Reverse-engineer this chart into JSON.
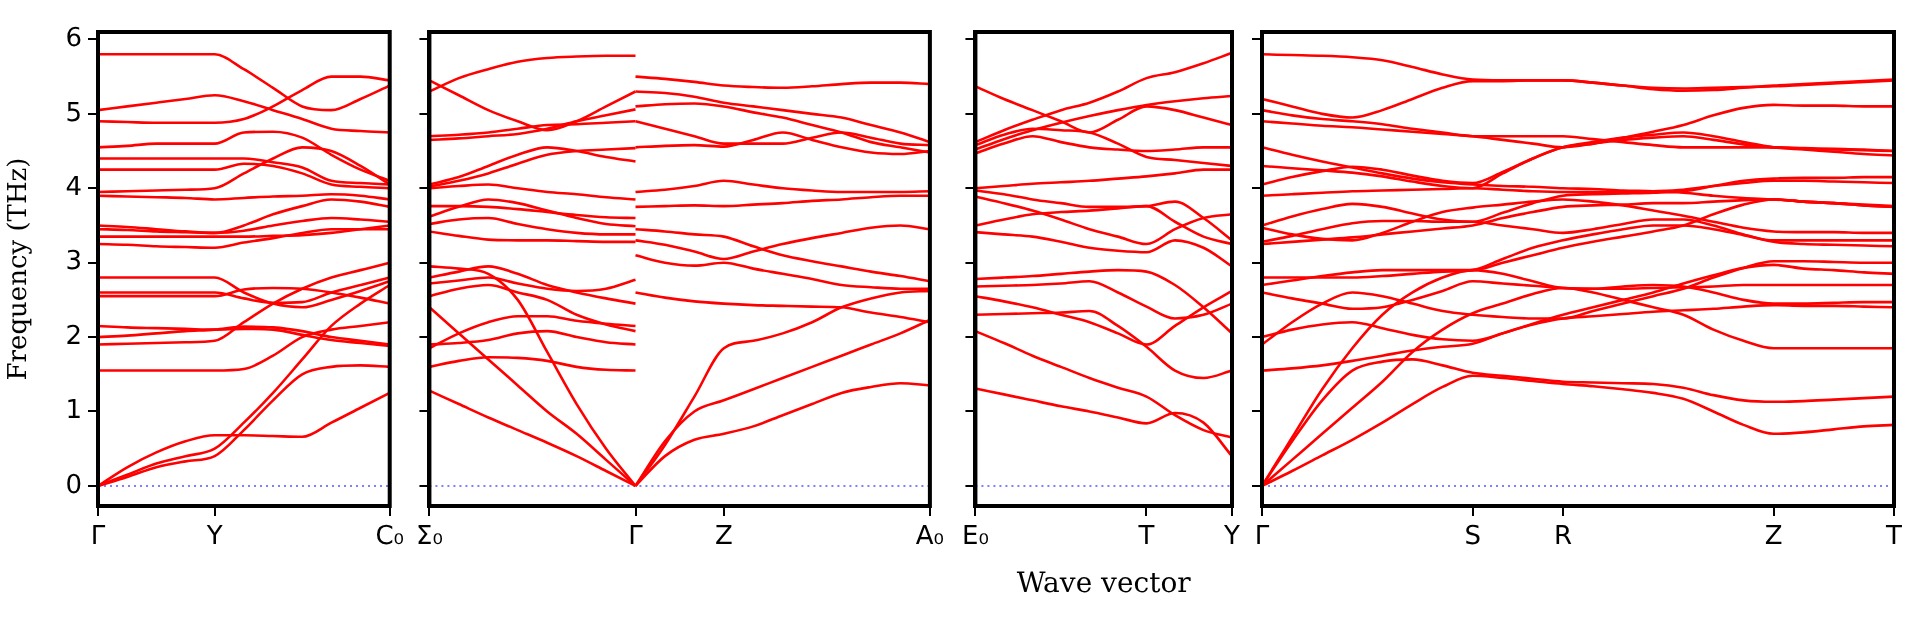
{
  "chart_data": [
    {
      "type": "line",
      "ylabel": "Frequency (THz)",
      "marker": "none",
      "grid": false,
      "categories": [
        "Γ",
        null,
        null,
        null,
        "Y",
        null,
        null,
        null,
        null,
        null,
        "C₀"
      ],
      "ylim": [
        -0.27,
        6.1
      ],
      "yticks": [
        0,
        1,
        2,
        3,
        4,
        5,
        6
      ],
      "ref_lines": [
        {
          "axis": "y",
          "value": 0,
          "color": "#8080ff",
          "line_style": "dotted"
        }
      ],
      "series": [
        {
          "color": "#ff0000",
          "values": [
            0,
            0.12,
            0.25,
            0.33,
            0.4,
            0.75,
            1.15,
            1.5,
            1.6,
            1.62,
            1.6
          ]
        },
        {
          "color": "#ff0000",
          "values": [
            0,
            0.15,
            0.3,
            0.4,
            0.5,
            0.85,
            1.25,
            1.7,
            2.15,
            2.45,
            2.7
          ]
        },
        {
          "color": "#ff0000",
          "values": [
            0,
            0.25,
            0.45,
            0.6,
            0.68,
            0.68,
            0.67,
            0.66,
            0.85,
            1.05,
            1.25
          ]
        },
        {
          "color": "#ff0000",
          "values": [
            1.55,
            1.55,
            1.55,
            1.55,
            1.55,
            1.57,
            1.75,
            2.0,
            2.1,
            2.15,
            2.2
          ]
        },
        {
          "color": "#ff0000",
          "values": [
            1.9,
            1.91,
            1.92,
            1.93,
            1.95,
            2.2,
            2.45,
            2.65,
            2.8,
            2.9,
            3.0
          ]
        },
        {
          "color": "#ff0000",
          "values": [
            2.0,
            2.02,
            2.05,
            2.08,
            2.1,
            2.14,
            2.13,
            2.08,
            2.0,
            1.95,
            1.9
          ]
        },
        {
          "color": "#ff0000",
          "values": [
            2.15,
            2.13,
            2.12,
            2.11,
            2.1,
            2.11,
            2.1,
            2.03,
            1.96,
            1.92,
            1.88
          ]
        },
        {
          "color": "#ff0000",
          "values": [
            2.55,
            2.55,
            2.55,
            2.55,
            2.55,
            2.64,
            2.66,
            2.65,
            2.6,
            2.53,
            2.45
          ]
        },
        {
          "color": "#ff0000",
          "values": [
            2.6,
            2.6,
            2.6,
            2.6,
            2.6,
            2.52,
            2.46,
            2.47,
            2.6,
            2.7,
            2.8
          ]
        },
        {
          "color": "#ff0000",
          "values": [
            2.8,
            2.8,
            2.8,
            2.8,
            2.8,
            2.6,
            2.45,
            2.4,
            2.5,
            2.62,
            2.75
          ]
        },
        {
          "color": "#ff0000",
          "values": [
            3.25,
            3.24,
            3.22,
            3.21,
            3.2,
            3.27,
            3.33,
            3.4,
            3.45,
            3.45,
            3.45
          ]
        },
        {
          "color": "#ff0000",
          "values": [
            3.35,
            3.35,
            3.35,
            3.35,
            3.35,
            3.35,
            3.36,
            3.37,
            3.4,
            3.45,
            3.5
          ]
        },
        {
          "color": "#ff0000",
          "values": [
            3.45,
            3.44,
            3.42,
            3.41,
            3.4,
            3.43,
            3.5,
            3.56,
            3.6,
            3.58,
            3.55
          ]
        },
        {
          "color": "#ff0000",
          "values": [
            3.5,
            3.48,
            3.45,
            3.42,
            3.4,
            3.5,
            3.65,
            3.76,
            3.85,
            3.82,
            3.75
          ]
        },
        {
          "color": "#ff0000",
          "values": [
            3.9,
            3.89,
            3.88,
            3.87,
            3.85,
            3.87,
            3.89,
            3.9,
            3.92,
            3.9,
            3.85
          ]
        },
        {
          "color": "#ff0000",
          "values": [
            3.95,
            3.96,
            3.97,
            3.98,
            4.0,
            4.2,
            4.4,
            4.55,
            4.5,
            4.3,
            4.05
          ]
        },
        {
          "color": "#ff0000",
          "values": [
            4.25,
            4.25,
            4.25,
            4.25,
            4.25,
            4.33,
            4.3,
            4.2,
            4.05,
            4.02,
            4.0
          ]
        },
        {
          "color": "#ff0000",
          "values": [
            4.4,
            4.4,
            4.4,
            4.4,
            4.4,
            4.4,
            4.35,
            4.28,
            4.1,
            4.07,
            4.05
          ]
        },
        {
          "color": "#ff0000",
          "values": [
            4.55,
            4.57,
            4.6,
            4.6,
            4.6,
            4.75,
            4.76,
            4.68,
            4.45,
            4.25,
            4.1
          ]
        },
        {
          "color": "#ff0000",
          "values": [
            4.9,
            4.89,
            4.88,
            4.88,
            4.88,
            4.93,
            5.1,
            5.32,
            5.5,
            5.5,
            5.45
          ]
        },
        {
          "color": "#ff0000",
          "values": [
            5.05,
            5.1,
            5.15,
            5.2,
            5.25,
            5.17,
            5.05,
            4.93,
            4.8,
            4.77,
            4.75
          ]
        },
        {
          "color": "#ff0000",
          "values": [
            5.8,
            5.8,
            5.8,
            5.8,
            5.8,
            5.6,
            5.35,
            5.1,
            5.05,
            5.2,
            5.38
          ]
        }
      ]
    },
    {
      "type": "line",
      "marker": "none",
      "grid": false,
      "tick_labels": "x",
      "categories": [
        "Σ₀",
        null,
        null,
        null,
        null,
        null,
        null,
        "Γ",
        null,
        null,
        "Z",
        null,
        null,
        null,
        null,
        null,
        null,
        "A₀"
      ],
      "ylim": [
        -0.27,
        6.1
      ],
      "yticks": [
        0,
        1,
        2,
        3,
        4,
        5,
        6
      ],
      "ref_lines": [
        {
          "axis": "y",
          "value": 0,
          "color": "#8080ff",
          "line_style": "dotted"
        }
      ],
      "series": [
        {
          "color": "#ff0000",
          "values": [
            1.28,
            1.1,
            0.92,
            0.75,
            0.58,
            0.4,
            0.2,
            0,
            null,
            null,
            null,
            null,
            null,
            null,
            null,
            null,
            null,
            null
          ]
        },
        {
          "color": "#ff0000",
          "values": [
            2.4,
            2.05,
            1.7,
            1.35,
            1.0,
            0.7,
            0.35,
            0,
            null,
            null,
            null,
            null,
            null,
            null,
            null,
            null,
            null,
            null
          ]
        },
        {
          "color": "#ff0000",
          "values": [
            2.95,
            2.92,
            2.85,
            2.5,
            1.8,
            1.1,
            0.5,
            0,
            null,
            null,
            null,
            null,
            null,
            null,
            null,
            null,
            null,
            null
          ]
        },
        {
          "color": "#ff0000",
          "values": [
            1.6,
            1.68,
            1.73,
            1.72,
            1.68,
            1.6,
            1.56,
            1.55,
            null,
            null,
            null,
            null,
            null,
            null,
            null,
            null,
            null,
            null
          ]
        },
        {
          "color": "#ff0000",
          "values": [
            1.9,
            1.92,
            1.96,
            2.05,
            2.08,
            2.0,
            1.93,
            1.9,
            null,
            null,
            null,
            null,
            null,
            null,
            null,
            null,
            null,
            null
          ]
        },
        {
          "color": "#ff0000",
          "values": [
            1.85,
            2.05,
            2.2,
            2.28,
            2.28,
            2.22,
            2.18,
            2.15,
            null,
            null,
            null,
            null,
            null,
            null,
            null,
            null,
            null,
            null
          ]
        },
        {
          "color": "#ff0000",
          "values": [
            2.55,
            2.65,
            2.7,
            2.6,
            2.5,
            2.3,
            2.17,
            2.08,
            null,
            null,
            null,
            null,
            null,
            null,
            null,
            null,
            null,
            null
          ]
        },
        {
          "color": "#ff0000",
          "values": [
            2.8,
            2.88,
            2.95,
            2.85,
            2.7,
            2.6,
            2.52,
            2.45,
            null,
            null,
            null,
            null,
            null,
            null,
            null,
            null,
            null,
            null
          ]
        },
        {
          "color": "#ff0000",
          "values": [
            2.72,
            2.76,
            2.8,
            2.72,
            2.65,
            2.62,
            2.65,
            2.77,
            null,
            null,
            null,
            null,
            null,
            null,
            null,
            null,
            null,
            null
          ]
        },
        {
          "color": "#ff0000",
          "values": [
            3.42,
            3.36,
            3.31,
            3.3,
            3.3,
            3.29,
            3.28,
            3.28,
            null,
            null,
            null,
            null,
            null,
            null,
            null,
            null,
            null,
            null
          ]
        },
        {
          "color": "#ff0000",
          "values": [
            3.52,
            3.58,
            3.6,
            3.52,
            3.45,
            3.4,
            3.38,
            3.38,
            null,
            null,
            null,
            null,
            null,
            null,
            null,
            null,
            null,
            null
          ]
        },
        {
          "color": "#ff0000",
          "values": [
            3.62,
            3.75,
            3.85,
            3.8,
            3.7,
            3.6,
            3.52,
            3.49,
            null,
            null,
            null,
            null,
            null,
            null,
            null,
            null,
            null,
            null
          ]
        },
        {
          "color": "#ff0000",
          "values": [
            3.76,
            3.76,
            3.75,
            3.72,
            3.68,
            3.64,
            3.61,
            3.6,
            null,
            null,
            null,
            null,
            null,
            null,
            null,
            null,
            null,
            null
          ]
        },
        {
          "color": "#ff0000",
          "values": [
            4.0,
            4.03,
            4.05,
            4.0,
            3.95,
            3.92,
            3.88,
            3.85,
            null,
            null,
            null,
            null,
            null,
            null,
            null,
            null,
            null,
            null
          ]
        },
        {
          "color": "#ff0000",
          "values": [
            4.05,
            4.15,
            4.3,
            4.45,
            4.55,
            4.5,
            4.42,
            4.36,
            null,
            null,
            null,
            null,
            null,
            null,
            null,
            null,
            null,
            null
          ]
        },
        {
          "color": "#ff0000",
          "values": [
            4.02,
            4.1,
            4.2,
            4.33,
            4.45,
            4.5,
            4.52,
            4.54,
            null,
            null,
            null,
            null,
            null,
            null,
            null,
            null,
            null,
            null
          ]
        },
        {
          "color": "#ff0000",
          "values": [
            4.7,
            4.72,
            4.75,
            4.8,
            4.85,
            4.86,
            4.88,
            4.9,
            null,
            null,
            null,
            null,
            null,
            null,
            null,
            null,
            null,
            null
          ]
        },
        {
          "color": "#ff0000",
          "values": [
            4.65,
            4.67,
            4.7,
            4.73,
            4.8,
            4.9,
            4.98,
            5.06,
            null,
            null,
            null,
            null,
            null,
            null,
            null,
            null,
            null,
            null
          ]
        },
        {
          "color": "#ff0000",
          "values": [
            5.45,
            5.25,
            5.05,
            4.9,
            4.78,
            4.9,
            5.1,
            5.3,
            null,
            null,
            null,
            null,
            null,
            null,
            null,
            null,
            null,
            null
          ]
        },
        {
          "color": "#ff0000",
          "values": [
            5.3,
            5.48,
            5.6,
            5.7,
            5.75,
            5.77,
            5.78,
            5.78,
            null,
            null,
            null,
            null,
            null,
            null,
            null,
            null,
            null,
            null
          ]
        },
        {
          "color": "#ff0000",
          "values": [
            null,
            null,
            null,
            null,
            null,
            null,
            null,
            0,
            0.4,
            0.62,
            0.7,
            0.8,
            0.95,
            1.1,
            1.25,
            1.33,
            1.38,
            1.35
          ]
        },
        {
          "color": "#ff0000",
          "values": [
            null,
            null,
            null,
            null,
            null,
            null,
            null,
            0,
            0.6,
            1.0,
            1.15,
            1.3,
            1.45,
            1.6,
            1.75,
            1.9,
            2.05,
            2.23
          ]
        },
        {
          "color": "#ff0000",
          "values": [
            null,
            null,
            null,
            null,
            null,
            null,
            null,
            0,
            0.55,
            1.2,
            1.85,
            1.95,
            2.05,
            2.2,
            2.4,
            2.52,
            2.6,
            2.62
          ]
        },
        {
          "color": "#ff0000",
          "values": [
            null,
            null,
            null,
            null,
            null,
            null,
            null,
            2.6,
            2.53,
            2.48,
            2.45,
            2.43,
            2.42,
            2.41,
            2.4,
            2.33,
            2.27,
            2.2
          ]
        },
        {
          "color": "#ff0000",
          "values": [
            null,
            null,
            null,
            null,
            null,
            null,
            null,
            3.1,
            3.0,
            2.96,
            3.0,
            2.92,
            2.85,
            2.78,
            2.7,
            2.67,
            2.65,
            2.65
          ]
        },
        {
          "color": "#ff0000",
          "values": [
            null,
            null,
            null,
            null,
            null,
            null,
            null,
            3.3,
            3.24,
            3.15,
            3.05,
            3.15,
            3.25,
            3.33,
            3.4,
            3.47,
            3.5,
            3.45
          ]
        },
        {
          "color": "#ff0000",
          "values": [
            null,
            null,
            null,
            null,
            null,
            null,
            null,
            3.45,
            3.42,
            3.38,
            3.35,
            3.22,
            3.1,
            3.02,
            2.95,
            2.88,
            2.82,
            2.75
          ]
        },
        {
          "color": "#ff0000",
          "values": [
            null,
            null,
            null,
            null,
            null,
            null,
            null,
            3.75,
            3.76,
            3.77,
            3.76,
            3.78,
            3.8,
            3.83,
            3.85,
            3.88,
            3.9,
            3.9
          ]
        },
        {
          "color": "#ff0000",
          "values": [
            null,
            null,
            null,
            null,
            null,
            null,
            null,
            3.95,
            3.98,
            4.03,
            4.1,
            4.05,
            4.0,
            3.97,
            3.95,
            3.95,
            3.95,
            3.96
          ]
        },
        {
          "color": "#ff0000",
          "values": [
            null,
            null,
            null,
            null,
            null,
            null,
            null,
            4.55,
            4.57,
            4.58,
            4.56,
            4.65,
            4.75,
            4.65,
            4.55,
            4.48,
            4.46,
            4.5
          ]
        },
        {
          "color": "#ff0000",
          "values": [
            null,
            null,
            null,
            null,
            null,
            null,
            null,
            4.9,
            4.8,
            4.7,
            4.6,
            4.6,
            4.6,
            4.68,
            4.75,
            4.68,
            4.6,
            4.58
          ]
        },
        {
          "color": "#ff0000",
          "values": [
            null,
            null,
            null,
            null,
            null,
            null,
            null,
            5.1,
            5.13,
            5.14,
            5.1,
            5.02,
            4.95,
            4.85,
            4.75,
            4.62,
            4.55,
            4.48
          ]
        },
        {
          "color": "#ff0000",
          "values": [
            null,
            null,
            null,
            null,
            null,
            null,
            null,
            5.3,
            5.28,
            5.23,
            5.15,
            5.1,
            5.05,
            5.0,
            4.95,
            4.85,
            4.75,
            4.62
          ]
        },
        {
          "color": "#ff0000",
          "values": [
            null,
            null,
            null,
            null,
            null,
            null,
            null,
            5.5,
            5.47,
            5.43,
            5.38,
            5.36,
            5.35,
            5.37,
            5.4,
            5.42,
            5.42,
            5.4
          ]
        }
      ]
    },
    {
      "type": "line",
      "xlabel": "Wave vector",
      "marker": "none",
      "grid": false,
      "tick_labels": "x",
      "categories": [
        "E₀",
        null,
        null,
        null,
        null,
        null,
        "T",
        null,
        null,
        "Y"
      ],
      "ylim": [
        -0.27,
        6.1
      ],
      "yticks": [
        0,
        1,
        2,
        3,
        4,
        5,
        6
      ],
      "ref_lines": [
        {
          "axis": "y",
          "value": 0,
          "color": "#8080ff",
          "line_style": "dotted"
        }
      ],
      "series": [
        {
          "color": "#ff0000",
          "values": [
            1.31,
            1.23,
            1.15,
            1.07,
            1.0,
            0.92,
            0.84,
            0.98,
            0.85,
            0.4
          ]
        },
        {
          "color": "#ff0000",
          "values": [
            2.08,
            1.92,
            1.75,
            1.6,
            1.45,
            1.32,
            1.2,
            0.95,
            0.75,
            0.65
          ]
        },
        {
          "color": "#ff0000",
          "values": [
            2.3,
            2.31,
            2.32,
            2.33,
            2.35,
            2.15,
            1.87,
            1.55,
            1.45,
            1.55
          ]
        },
        {
          "color": "#ff0000",
          "values": [
            2.68,
            2.69,
            2.7,
            2.72,
            2.75,
            2.6,
            2.41,
            2.25,
            2.3,
            2.45
          ]
        },
        {
          "color": "#ff0000",
          "values": [
            2.55,
            2.48,
            2.4,
            2.3,
            2.2,
            2.05,
            1.9,
            2.15,
            2.4,
            2.62
          ]
        },
        {
          "color": "#ff0000",
          "values": [
            2.78,
            2.8,
            2.82,
            2.85,
            2.88,
            2.9,
            2.88,
            2.7,
            2.4,
            2.05
          ]
        },
        {
          "color": "#ff0000",
          "values": [
            3.41,
            3.38,
            3.35,
            3.28,
            3.2,
            3.16,
            3.14,
            3.3,
            3.2,
            2.95
          ]
        },
        {
          "color": "#ff0000",
          "values": [
            3.5,
            3.58,
            3.65,
            3.68,
            3.7,
            3.73,
            3.76,
            3.55,
            3.35,
            3.25
          ]
        },
        {
          "color": "#ff0000",
          "values": [
            3.89,
            3.8,
            3.7,
            3.58,
            3.45,
            3.35,
            3.25,
            3.45,
            3.6,
            3.65
          ]
        },
        {
          "color": "#ff0000",
          "values": [
            3.97,
            3.92,
            3.85,
            3.8,
            3.75,
            3.75,
            3.76,
            3.82,
            3.6,
            3.3
          ]
        },
        {
          "color": "#ff0000",
          "values": [
            4.0,
            4.03,
            4.06,
            4.08,
            4.1,
            4.13,
            4.16,
            4.2,
            4.25,
            4.25
          ]
        },
        {
          "color": "#ff0000",
          "values": [
            4.47,
            4.6,
            4.7,
            4.62,
            4.55,
            4.52,
            4.5,
            4.52,
            4.55,
            4.55
          ]
        },
        {
          "color": "#ff0000",
          "values": [
            4.58,
            4.72,
            4.8,
            4.78,
            4.75,
            4.6,
            4.42,
            4.38,
            4.34,
            4.3
          ]
        },
        {
          "color": "#ff0000",
          "values": [
            5.37,
            5.2,
            5.05,
            4.9,
            4.75,
            4.92,
            5.1,
            5.05,
            4.95,
            4.85
          ]
        },
        {
          "color": "#ff0000",
          "values": [
            4.62,
            4.78,
            4.92,
            5.05,
            5.15,
            5.3,
            5.48,
            5.56,
            5.68,
            5.82
          ]
        },
        {
          "color": "#ff0000",
          "values": [
            4.52,
            4.66,
            4.78,
            4.88,
            4.97,
            5.05,
            5.12,
            5.17,
            5.21,
            5.24
          ]
        }
      ]
    },
    {
      "type": "line",
      "marker": "none",
      "grid": false,
      "tick_labels": "x",
      "categories": [
        "Γ",
        null,
        null,
        null,
        null,
        null,
        null,
        "S",
        null,
        null,
        "R",
        null,
        null,
        null,
        null,
        null,
        null,
        "Z",
        null,
        null,
        null,
        "T"
      ],
      "ylim": [
        -0.27,
        6.1
      ],
      "yticks": [
        0,
        1,
        2,
        3,
        4,
        5,
        6
      ],
      "ref_lines": [
        {
          "axis": "y",
          "value": 0,
          "color": "#8080ff",
          "line_style": "dotted"
        }
      ],
      "series": [
        {
          "color": "#ff0000",
          "values": [
            0,
            0.2,
            0.41,
            0.62,
            0.85,
            1.1,
            1.33,
            1.48,
            1.45,
            1.41,
            1.37,
            1.34,
            1.3,
            1.25,
            1.17,
            1.0,
            0.82,
            0.7,
            0.72,
            0.76,
            0.8,
            0.82
          ]
        },
        {
          "color": "#ff0000",
          "values": [
            0,
            0.6,
            1.15,
            1.55,
            1.67,
            1.7,
            1.62,
            1.52,
            1.48,
            1.44,
            1.4,
            1.39,
            1.38,
            1.37,
            1.32,
            1.22,
            1.15,
            1.13,
            1.14,
            1.16,
            1.18,
            1.2
          ]
        },
        {
          "color": "#ff0000",
          "values": [
            0,
            0.35,
            0.7,
            1.05,
            1.4,
            1.8,
            2.1,
            2.32,
            2.45,
            2.58,
            2.66,
            2.6,
            2.5,
            2.4,
            2.3,
            2.1,
            1.95,
            1.85,
            1.85,
            1.85,
            1.85,
            1.85
          ]
        },
        {
          "color": "#ff0000",
          "values": [
            0,
            0.65,
            1.3,
            1.85,
            2.3,
            2.6,
            2.8,
            2.9,
            2.85,
            2.75,
            2.66,
            2.65,
            2.68,
            2.7,
            2.68,
            2.6,
            2.5,
            2.45,
            2.45,
            2.46,
            2.47,
            2.47
          ]
        },
        {
          "color": "#ff0000",
          "values": [
            1.55,
            1.58,
            1.62,
            1.68,
            1.75,
            1.82,
            1.87,
            1.91,
            2.05,
            2.17,
            2.25,
            2.28,
            2.31,
            2.34,
            2.36,
            2.38,
            2.41,
            2.43,
            2.42,
            2.42,
            2.41,
            2.4
          ]
        },
        {
          "color": "#ff0000",
          "values": [
            1.9,
            2.2,
            2.45,
            2.6,
            2.55,
            2.45,
            2.35,
            2.3,
            2.27,
            2.25,
            2.25,
            2.35,
            2.45,
            2.55,
            2.65,
            2.8,
            2.93,
            3.02,
            3.02,
            3.01,
            3.0,
            3.0
          ]
        },
        {
          "color": "#ff0000",
          "values": [
            2.0,
            2.1,
            2.17,
            2.2,
            2.12,
            2.03,
            1.97,
            1.95,
            2.05,
            2.18,
            2.3,
            2.4,
            2.5,
            2.6,
            2.72,
            2.83,
            2.93,
            2.97,
            2.92,
            2.9,
            2.87,
            2.85
          ]
        },
        {
          "color": "#ff0000",
          "values": [
            2.6,
            2.52,
            2.45,
            2.38,
            2.4,
            2.5,
            2.62,
            2.75,
            2.72,
            2.69,
            2.66,
            2.65,
            2.65,
            2.66,
            2.67,
            2.68,
            2.7,
            2.7,
            2.7,
            2.7,
            2.7,
            2.7
          ]
        },
        {
          "color": "#ff0000",
          "values": [
            2.8,
            2.8,
            2.8,
            2.8,
            2.82,
            2.85,
            2.88,
            2.9,
            3.05,
            3.2,
            3.3,
            3.38,
            3.45,
            3.5,
            3.5,
            3.45,
            3.37,
            3.3,
            3.3,
            3.3,
            3.3,
            3.3
          ]
        },
        {
          "color": "#ff0000",
          "values": [
            2.7,
            2.76,
            2.82,
            2.87,
            2.9,
            2.9,
            2.9,
            2.9,
            3.0,
            3.1,
            3.2,
            3.28,
            3.35,
            3.42,
            3.5,
            3.65,
            3.78,
            3.85,
            3.82,
            3.8,
            3.77,
            3.75
          ]
        },
        {
          "color": "#ff0000",
          "values": [
            3.25,
            3.28,
            3.31,
            3.34,
            3.38,
            3.42,
            3.46,
            3.5,
            3.6,
            3.68,
            3.75,
            3.77,
            3.78,
            3.8,
            3.8,
            3.82,
            3.84,
            3.85,
            3.82,
            3.8,
            3.78,
            3.76
          ]
        },
        {
          "color": "#ff0000",
          "values": [
            3.28,
            3.36,
            3.45,
            3.53,
            3.56,
            3.56,
            3.55,
            3.55,
            3.5,
            3.45,
            3.4,
            3.45,
            3.52,
            3.58,
            3.58,
            3.5,
            3.38,
            3.28,
            3.25,
            3.24,
            3.23,
            3.22
          ]
        },
        {
          "color": "#ff0000",
          "values": [
            3.47,
            3.38,
            3.32,
            3.3,
            3.4,
            3.55,
            3.68,
            3.74,
            3.78,
            3.82,
            3.85,
            3.82,
            3.77,
            3.7,
            3.63,
            3.55,
            3.47,
            3.42,
            3.41,
            3.41,
            3.4,
            3.4
          ]
        },
        {
          "color": "#ff0000",
          "values": [
            3.5,
            3.62,
            3.72,
            3.79,
            3.75,
            3.66,
            3.58,
            3.55,
            3.67,
            3.8,
            3.9,
            3.92,
            3.93,
            3.94,
            3.96,
            4.03,
            4.1,
            4.13,
            4.14,
            4.14,
            4.15,
            4.15
          ]
        },
        {
          "color": "#ff0000",
          "values": [
            3.9,
            3.92,
            3.94,
            3.96,
            3.97,
            3.98,
            3.99,
            4.0,
            3.98,
            3.96,
            3.95,
            3.95,
            3.95,
            3.96,
            3.98,
            4.03,
            4.07,
            4.1,
            4.1,
            4.09,
            4.08,
            4.07
          ]
        },
        {
          "color": "#ff0000",
          "values": [
            4.05,
            4.15,
            4.23,
            4.29,
            4.25,
            4.17,
            4.1,
            4.07,
            4.22,
            4.4,
            4.55,
            4.6,
            4.65,
            4.68,
            4.7,
            4.65,
            4.59,
            4.55,
            4.53,
            4.52,
            4.51,
            4.5
          ]
        },
        {
          "color": "#ff0000",
          "values": [
            4.3,
            4.27,
            4.24,
            4.21,
            4.16,
            4.09,
            4.03,
            4.0,
            4.2,
            4.4,
            4.55,
            4.62,
            4.68,
            4.72,
            4.75,
            4.7,
            4.62,
            4.55,
            4.52,
            4.49,
            4.46,
            4.44
          ]
        },
        {
          "color": "#ff0000",
          "values": [
            4.55,
            4.45,
            4.36,
            4.28,
            4.2,
            4.13,
            4.08,
            4.05,
            4.03,
            4.02,
            4.0,
            3.99,
            3.97,
            3.96,
            3.94,
            3.9,
            3.87,
            3.85,
            3.82,
            3.8,
            3.77,
            3.75
          ]
        },
        {
          "color": "#ff0000",
          "values": [
            4.9,
            4.87,
            4.84,
            4.82,
            4.79,
            4.76,
            4.73,
            4.7,
            4.65,
            4.6,
            4.55,
            4.6,
            4.68,
            4.76,
            4.85,
            4.98,
            5.08,
            5.12,
            5.11,
            5.11,
            5.1,
            5.1
          ]
        },
        {
          "color": "#ff0000",
          "values": [
            5.05,
            4.98,
            4.93,
            4.9,
            4.86,
            4.8,
            4.75,
            4.7,
            4.7,
            4.7,
            4.7,
            4.66,
            4.62,
            4.58,
            4.55,
            4.55,
            4.55,
            4.55,
            4.54,
            4.53,
            4.52,
            4.5
          ]
        },
        {
          "color": "#ff0000",
          "values": [
            5.2,
            5.1,
            5.0,
            4.95,
            5.05,
            5.2,
            5.35,
            5.44,
            5.44,
            5.45,
            5.45,
            5.42,
            5.38,
            5.35,
            5.34,
            5.35,
            5.36,
            5.37,
            5.39,
            5.41,
            5.43,
            5.45
          ]
        },
        {
          "color": "#ff0000",
          "values": [
            5.8,
            5.79,
            5.78,
            5.76,
            5.72,
            5.63,
            5.53,
            5.46,
            5.45,
            5.45,
            5.45,
            5.42,
            5.38,
            5.33,
            5.31,
            5.32,
            5.35,
            5.38,
            5.4,
            5.42,
            5.44,
            5.46
          ]
        }
      ]
    }
  ]
}
